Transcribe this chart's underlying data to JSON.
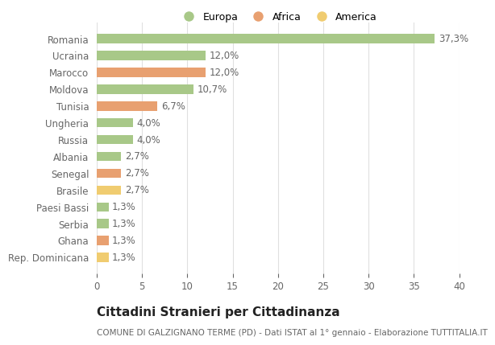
{
  "countries": [
    "Romania",
    "Ucraina",
    "Marocco",
    "Moldova",
    "Tunisia",
    "Ungheria",
    "Russia",
    "Albania",
    "Senegal",
    "Brasile",
    "Paesi Bassi",
    "Serbia",
    "Ghana",
    "Rep. Dominicana"
  ],
  "values": [
    37.3,
    12.0,
    12.0,
    10.7,
    6.7,
    4.0,
    4.0,
    2.7,
    2.7,
    2.7,
    1.3,
    1.3,
    1.3,
    1.3
  ],
  "continents": [
    "Europa",
    "Europa",
    "Africa",
    "Europa",
    "Africa",
    "Europa",
    "Europa",
    "Europa",
    "Africa",
    "America",
    "Europa",
    "Europa",
    "Africa",
    "America"
  ],
  "labels": [
    "37,3%",
    "12,0%",
    "12,0%",
    "10,7%",
    "6,7%",
    "4,0%",
    "4,0%",
    "2,7%",
    "2,7%",
    "2,7%",
    "1,3%",
    "1,3%",
    "1,3%",
    "1,3%"
  ],
  "color_map": {
    "Europa": "#a8c888",
    "Africa": "#e8a070",
    "America": "#f0cc70"
  },
  "legend_items": [
    "Europa",
    "Africa",
    "America"
  ],
  "legend_colors": [
    "#a8c888",
    "#e8a070",
    "#f0cc70"
  ],
  "title": "Cittadini Stranieri per Cittadinanza",
  "subtitle": "COMUNE DI GALZIGNANO TERME (PD) - Dati ISTAT al 1° gennaio - Elaborazione TUTTITALIA.IT",
  "xlim": [
    0,
    40
  ],
  "xticks": [
    0,
    5,
    10,
    15,
    20,
    25,
    30,
    35,
    40
  ],
  "background_color": "#ffffff",
  "grid_color": "#e0e0e0",
  "bar_height": 0.55,
  "label_fontsize": 8.5,
  "tick_fontsize": 8.5,
  "title_fontsize": 11,
  "subtitle_fontsize": 7.5,
  "legend_fontsize": 9,
  "text_color": "#666666",
  "title_color": "#222222"
}
